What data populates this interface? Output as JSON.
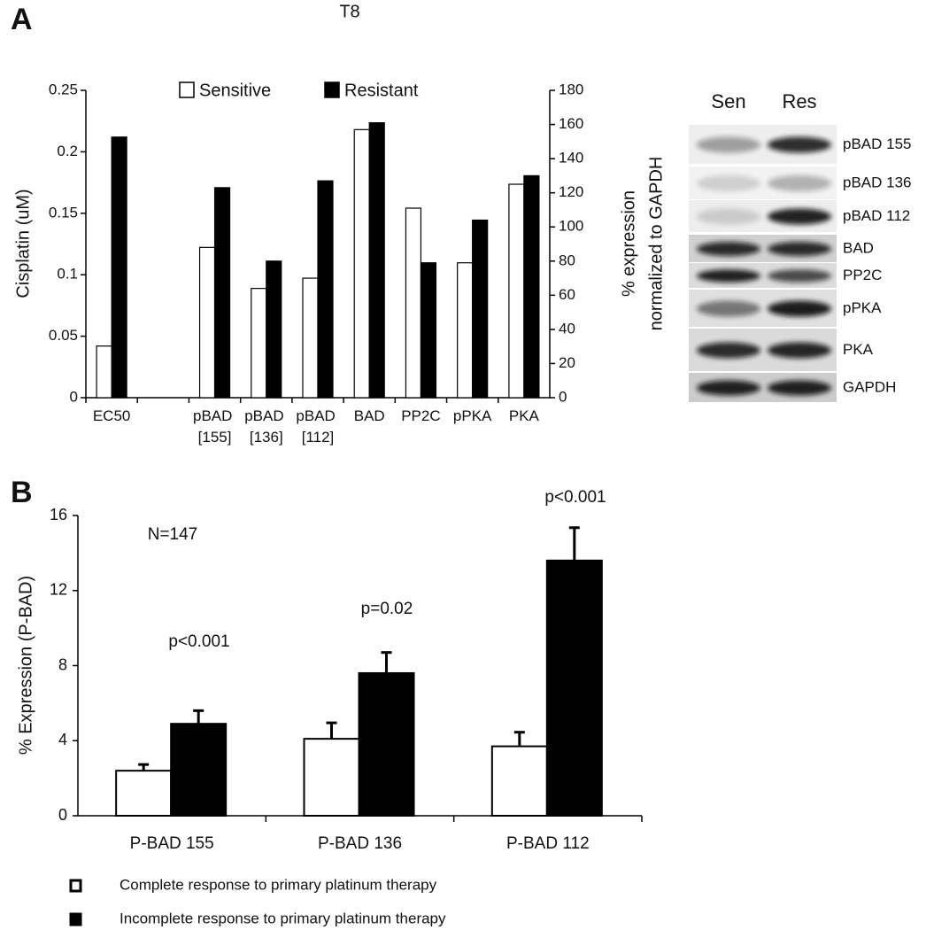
{
  "panel_labels": [
    "A",
    "B"
  ],
  "chart_data": [
    {
      "type": "bar",
      "title": "T8",
      "ylabel": "Cisplatin (uM)",
      "y2label": [
        "% expression",
        "normalized to GAPDH"
      ],
      "categories": [
        "EC50",
        null,
        "pBAD [155]",
        "pBAD [136]",
        "pBAD [112]",
        "BAD",
        "PP2C",
        "pPKA",
        "PKA"
      ],
      "series": [
        {
          "name": "Sensitive",
          "color": "#ffffff",
          "axis": "y",
          "values": [
            0.042,
            null,
            null,
            null,
            null,
            null,
            null,
            null,
            null
          ]
        },
        {
          "name": "Resistant",
          "color": "#000000",
          "axis": "y",
          "values": [
            0.212,
            null,
            null,
            null,
            null,
            null,
            null,
            null,
            null
          ]
        },
        {
          "color": "#ffffff",
          "axis": "y2",
          "values": [
            null,
            null,
            88,
            64,
            70,
            157,
            111,
            79,
            125
          ]
        },
        {
          "color": "#000000",
          "axis": "y2",
          "values": [
            null,
            null,
            123,
            80,
            127,
            161,
            79,
            104,
            130
          ]
        }
      ],
      "ylim": [
        0,
        0.25
      ],
      "yticks": [
        0,
        0.05,
        0.1,
        0.15,
        0.2,
        0.25
      ],
      "y2lim": [
        0,
        180
      ],
      "y2ticks": [
        0,
        20,
        40,
        60,
        80,
        100,
        120,
        140,
        160,
        180
      ],
      "legend": "top"
    },
    {
      "type": "bar",
      "ylabel": "% Expression (P-BAD)",
      "categories": [
        "P-BAD 155",
        "P-BAD 136",
        "P-BAD 112"
      ],
      "series": [
        {
          "name": "Complete response to primary platinum therapy",
          "color": "#ffffff",
          "values": [
            2.4,
            4.1,
            3.7
          ],
          "errors": [
            0.33,
            0.85,
            0.75
          ]
        },
        {
          "name": "Incomplete response to primary platinum therapy",
          "color": "#000000",
          "values": [
            4.9,
            7.6,
            13.6
          ],
          "errors": [
            0.7,
            1.1,
            1.75
          ]
        }
      ],
      "annotations": [
        "N=147",
        "p<0.001",
        "p=0.02",
        "p<0.001"
      ],
      "ylim": [
        0,
        16
      ],
      "yticks": [
        0,
        4,
        8,
        12,
        16
      ],
      "legend": "bottom"
    }
  ],
  "blot": {
    "columns": [
      "Sen",
      "Res"
    ],
    "rows": [
      "pBAD 155",
      "pBAD 136",
      "pBAD 112",
      "BAD",
      "PP2C",
      "pPKA",
      "PKA",
      "GAPDH"
    ]
  }
}
